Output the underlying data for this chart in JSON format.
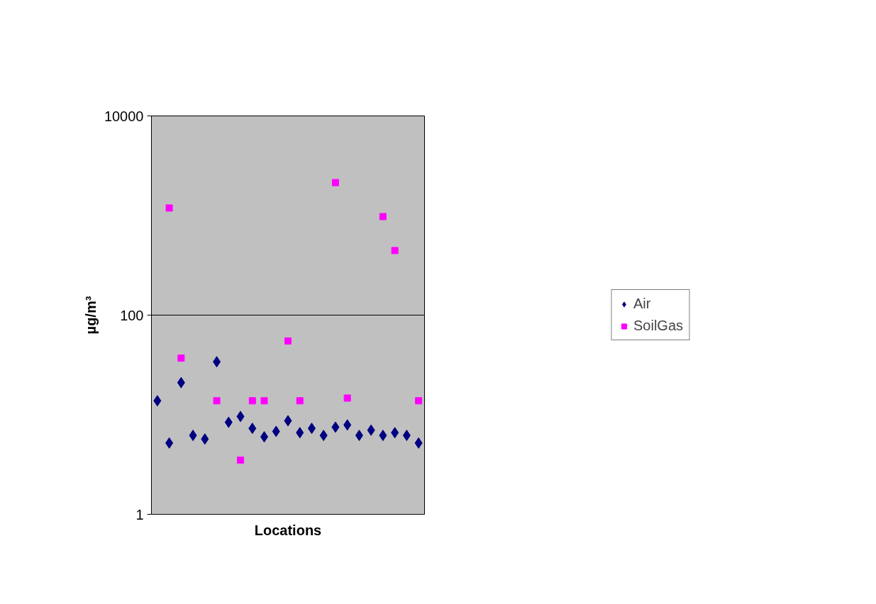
{
  "chart_data": {
    "type": "scatter",
    "xlabel": "Locations",
    "ylabel": "µg/m³",
    "categories": [
      null,
      null,
      null,
      null,
      null,
      null,
      null,
      null,
      null,
      null,
      null,
      null,
      null,
      null,
      null,
      null,
      null,
      null,
      null,
      null,
      null,
      null,
      null
    ],
    "ylim": [
      1,
      10000
    ],
    "yticks": [
      1,
      100,
      10000
    ],
    "log": "y",
    "grid": "y",
    "legend": "right",
    "tick_labels": "y",
    "series": [
      {
        "name": "Air",
        "color": "#000080",
        "marker": "diamond",
        "values": [
          13.8,
          5.2,
          21,
          6.2,
          5.7,
          34,
          8.4,
          9.6,
          7.3,
          6.0,
          6.8,
          8.7,
          6.6,
          7.3,
          6.2,
          7.5,
          7.9,
          6.2,
          7.0,
          6.2,
          6.6,
          6.2,
          5.2
        ]
      },
      {
        "name": "SoilGas",
        "color": "#ff00ff",
        "marker": "square",
        "values": [
          null,
          1190,
          37,
          null,
          null,
          13.8,
          null,
          3.5,
          13.8,
          13.8,
          null,
          55,
          13.8,
          null,
          null,
          2140,
          14.7,
          null,
          null,
          975,
          445,
          null,
          13.8
        ]
      }
    ]
  }
}
